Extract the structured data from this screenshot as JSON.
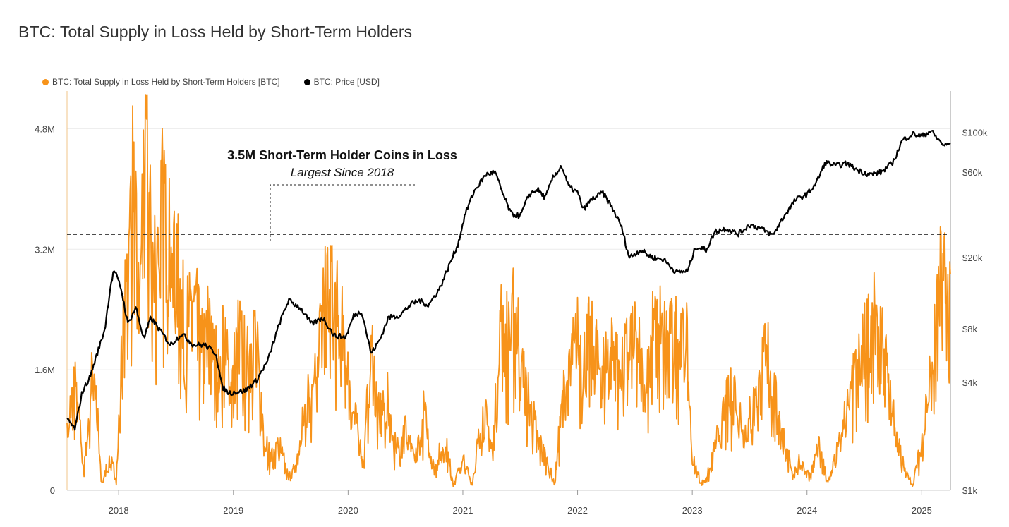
{
  "chart_data": {
    "type": "line",
    "title": "BTC: Total Supply in Loss Held by Short-Term Holders",
    "legend": [
      {
        "name": "BTC: Total Supply in Loss Held by Short-Term Holders [BTC]",
        "color": "#f7931a"
      },
      {
        "name": "BTC: Price [USD]",
        "color": "#000000"
      }
    ],
    "legend_position": "top-left",
    "x_range": [
      2017.55,
      2025.25
    ],
    "x_ticks": [
      {
        "label": "2018",
        "value": 2018
      },
      {
        "label": "2019",
        "value": 2019
      },
      {
        "label": "2020",
        "value": 2020
      },
      {
        "label": "2021",
        "value": 2021
      },
      {
        "label": "2022",
        "value": 2022
      },
      {
        "label": "2023",
        "value": 2023
      },
      {
        "label": "2024",
        "value": 2024
      },
      {
        "label": "2025",
        "value": 2025
      }
    ],
    "y_left": {
      "range": [
        0,
        5.3
      ],
      "ticks": [
        {
          "label": "0",
          "value": 0
        },
        {
          "label": "1.6M",
          "value": 1.6
        },
        {
          "label": "3.2M",
          "value": 3.2
        },
        {
          "label": "4.8M",
          "value": 4.8
        }
      ]
    },
    "y_right": {
      "scale": "log",
      "range": [
        1000,
        170000
      ],
      "ticks": [
        {
          "label": "$1k",
          "value": 1000
        },
        {
          "label": "$4k",
          "value": 4000
        },
        {
          "label": "$8k",
          "value": 8000
        },
        {
          "label": "$20k",
          "value": 20000
        },
        {
          "label": "$60k",
          "value": 60000
        },
        {
          "label": "$100k",
          "value": 100000
        }
      ]
    },
    "threshold_line": {
      "value": 3.4
    },
    "annotation": {
      "line1": "3.5M Short-Term Holder Coins in Loss",
      "line2": "Largest Since 2018"
    },
    "series": [
      {
        "name": "BTC: Total Supply in Loss Held by Short-Term Holders [BTC]",
        "unit": "millions BTC",
        "color": "#f7931a",
        "points": [
          [
            2017.55,
            0.9
          ],
          [
            2017.62,
            1.8
          ],
          [
            2017.7,
            0.3
          ],
          [
            2017.78,
            2.2
          ],
          [
            2017.85,
            0.1
          ],
          [
            2017.92,
            0.5
          ],
          [
            2017.98,
            0.2
          ],
          [
            2018.02,
            1.8
          ],
          [
            2018.07,
            3.2
          ],
          [
            2018.12,
            4.7
          ],
          [
            2018.17,
            3.0
          ],
          [
            2018.21,
            4.8
          ],
          [
            2018.25,
            5.2
          ],
          [
            2018.3,
            3.4
          ],
          [
            2018.35,
            4.2
          ],
          [
            2018.4,
            4.5
          ],
          [
            2018.45,
            4.0
          ],
          [
            2018.52,
            3.3
          ],
          [
            2018.58,
            2.4
          ],
          [
            2018.65,
            3.0
          ],
          [
            2018.72,
            2.1
          ],
          [
            2018.8,
            2.7
          ],
          [
            2018.86,
            1.8
          ],
          [
            2018.92,
            2.5
          ],
          [
            2018.98,
            1.6
          ],
          [
            2019.05,
            2.4
          ],
          [
            2019.12,
            1.9
          ],
          [
            2019.18,
            2.6
          ],
          [
            2019.25,
            1.2
          ],
          [
            2019.32,
            0.5
          ],
          [
            2019.4,
            0.7
          ],
          [
            2019.48,
            0.2
          ],
          [
            2019.55,
            0.4
          ],
          [
            2019.62,
            1.2
          ],
          [
            2019.7,
            1.8
          ],
          [
            2019.78,
            2.7
          ],
          [
            2019.86,
            3.2
          ],
          [
            2019.9,
            2.7
          ],
          [
            2019.96,
            2.3
          ],
          [
            2020.02,
            1.5
          ],
          [
            2020.08,
            0.9
          ],
          [
            2020.14,
            0.5
          ],
          [
            2020.2,
            2.4
          ],
          [
            2020.26,
            1.1
          ],
          [
            2020.34,
            1.4
          ],
          [
            2020.42,
            0.6
          ],
          [
            2020.5,
            1.0
          ],
          [
            2020.58,
            0.4
          ],
          [
            2020.66,
            1.2
          ],
          [
            2020.75,
            0.3
          ],
          [
            2020.84,
            0.8
          ],
          [
            2020.92,
            0.1
          ],
          [
            2021.0,
            0.5
          ],
          [
            2021.08,
            0.1
          ],
          [
            2021.18,
            1.3
          ],
          [
            2021.26,
            0.6
          ],
          [
            2021.34,
            2.7
          ],
          [
            2021.4,
            2.3
          ],
          [
            2021.46,
            2.8
          ],
          [
            2021.52,
            1.8
          ],
          [
            2021.58,
            1.4
          ],
          [
            2021.65,
            0.8
          ],
          [
            2021.72,
            0.5
          ],
          [
            2021.8,
            0.1
          ],
          [
            2021.87,
            1.4
          ],
          [
            2021.92,
            1.8
          ],
          [
            2022.0,
            2.3
          ],
          [
            2022.06,
            2.0
          ],
          [
            2022.12,
            2.4
          ],
          [
            2022.2,
            1.9
          ],
          [
            2022.3,
            2.2
          ],
          [
            2022.4,
            2.0
          ],
          [
            2022.5,
            2.4
          ],
          [
            2022.58,
            1.8
          ],
          [
            2022.65,
            2.4
          ],
          [
            2022.72,
            2.5
          ],
          [
            2022.8,
            2.2
          ],
          [
            2022.88,
            2.5
          ],
          [
            2022.95,
            2.2
          ],
          [
            2023.0,
            0.5
          ],
          [
            2023.08,
            0.1
          ],
          [
            2023.15,
            0.3
          ],
          [
            2023.22,
            0.8
          ],
          [
            2023.3,
            1.3
          ],
          [
            2023.38,
            1.6
          ],
          [
            2023.45,
            0.9
          ],
          [
            2023.52,
            1.2
          ],
          [
            2023.6,
            1.8
          ],
          [
            2023.66,
            2.1
          ],
          [
            2023.72,
            1.4
          ],
          [
            2023.8,
            0.8
          ],
          [
            2023.88,
            0.2
          ],
          [
            2023.95,
            0.5
          ],
          [
            2024.02,
            0.2
          ],
          [
            2024.1,
            0.7
          ],
          [
            2024.18,
            0.1
          ],
          [
            2024.26,
            0.6
          ],
          [
            2024.34,
            1.2
          ],
          [
            2024.42,
            1.7
          ],
          [
            2024.5,
            2.2
          ],
          [
            2024.56,
            2.6
          ],
          [
            2024.62,
            2.4
          ],
          [
            2024.7,
            1.8
          ],
          [
            2024.78,
            0.9
          ],
          [
            2024.85,
            0.3
          ],
          [
            2024.92,
            0.1
          ],
          [
            2025.0,
            0.7
          ],
          [
            2025.05,
            1.5
          ],
          [
            2025.1,
            2.0
          ],
          [
            2025.15,
            2.9
          ],
          [
            2025.19,
            3.5
          ],
          [
            2025.23,
            2.8
          ],
          [
            2025.25,
            2.6
          ]
        ]
      },
      {
        "name": "BTC: Price [USD]",
        "unit": "USD",
        "color": "#000000",
        "points": [
          [
            2017.55,
            2500
          ],
          [
            2017.62,
            2200
          ],
          [
            2017.68,
            3500
          ],
          [
            2017.75,
            4300
          ],
          [
            2017.82,
            6000
          ],
          [
            2017.88,
            8000
          ],
          [
            2017.93,
            14000
          ],
          [
            2017.96,
            17000
          ],
          [
            2018.02,
            13500
          ],
          [
            2018.08,
            8500
          ],
          [
            2018.15,
            10500
          ],
          [
            2018.22,
            7000
          ],
          [
            2018.28,
            9200
          ],
          [
            2018.35,
            8000
          ],
          [
            2018.45,
            6500
          ],
          [
            2018.55,
            7500
          ],
          [
            2018.65,
            6500
          ],
          [
            2018.75,
            6500
          ],
          [
            2018.85,
            5800
          ],
          [
            2018.9,
            3800
          ],
          [
            2018.96,
            3500
          ],
          [
            2019.1,
            3600
          ],
          [
            2019.2,
            4100
          ],
          [
            2019.3,
            5300
          ],
          [
            2019.4,
            8500
          ],
          [
            2019.48,
            11500
          ],
          [
            2019.58,
            10500
          ],
          [
            2019.68,
            8500
          ],
          [
            2019.78,
            9200
          ],
          [
            2019.88,
            7300
          ],
          [
            2019.98,
            7200
          ],
          [
            2020.05,
            9500
          ],
          [
            2020.12,
            10000
          ],
          [
            2020.2,
            5800
          ],
          [
            2020.28,
            7000
          ],
          [
            2020.35,
            9200
          ],
          [
            2020.45,
            9500
          ],
          [
            2020.55,
            11000
          ],
          [
            2020.62,
            11500
          ],
          [
            2020.7,
            10800
          ],
          [
            2020.8,
            13500
          ],
          [
            2020.88,
            18000
          ],
          [
            2020.96,
            24000
          ],
          [
            2021.02,
            35000
          ],
          [
            2021.1,
            47000
          ],
          [
            2021.2,
            58000
          ],
          [
            2021.28,
            60000
          ],
          [
            2021.35,
            45000
          ],
          [
            2021.42,
            35000
          ],
          [
            2021.5,
            34000
          ],
          [
            2021.58,
            45000
          ],
          [
            2021.65,
            48000
          ],
          [
            2021.72,
            43000
          ],
          [
            2021.78,
            55000
          ],
          [
            2021.86,
            65000
          ],
          [
            2021.92,
            50000
          ],
          [
            2022.0,
            46000
          ],
          [
            2022.05,
            37000
          ],
          [
            2022.12,
            42000
          ],
          [
            2022.22,
            46000
          ],
          [
            2022.3,
            38000
          ],
          [
            2022.38,
            30000
          ],
          [
            2022.45,
            20000
          ],
          [
            2022.55,
            22000
          ],
          [
            2022.65,
            20000
          ],
          [
            2022.75,
            19500
          ],
          [
            2022.86,
            16500
          ],
          [
            2022.96,
            16800
          ],
          [
            2023.03,
            23000
          ],
          [
            2023.12,
            22000
          ],
          [
            2023.2,
            28000
          ],
          [
            2023.3,
            29000
          ],
          [
            2023.4,
            27000
          ],
          [
            2023.5,
            30500
          ],
          [
            2023.6,
            29000
          ],
          [
            2023.7,
            26500
          ],
          [
            2023.8,
            34000
          ],
          [
            2023.9,
            42000
          ],
          [
            2024.0,
            45000
          ],
          [
            2024.08,
            52000
          ],
          [
            2024.16,
            68000
          ],
          [
            2024.25,
            65000
          ],
          [
            2024.35,
            67000
          ],
          [
            2024.45,
            61000
          ],
          [
            2024.55,
            58000
          ],
          [
            2024.65,
            60000
          ],
          [
            2024.75,
            68000
          ],
          [
            2024.83,
            90000
          ],
          [
            2024.92,
            98000
          ],
          [
            2025.0,
            95000
          ],
          [
            2025.08,
            102000
          ],
          [
            2025.15,
            90000
          ],
          [
            2025.2,
            84000
          ],
          [
            2025.25,
            87000
          ]
        ]
      }
    ]
  }
}
